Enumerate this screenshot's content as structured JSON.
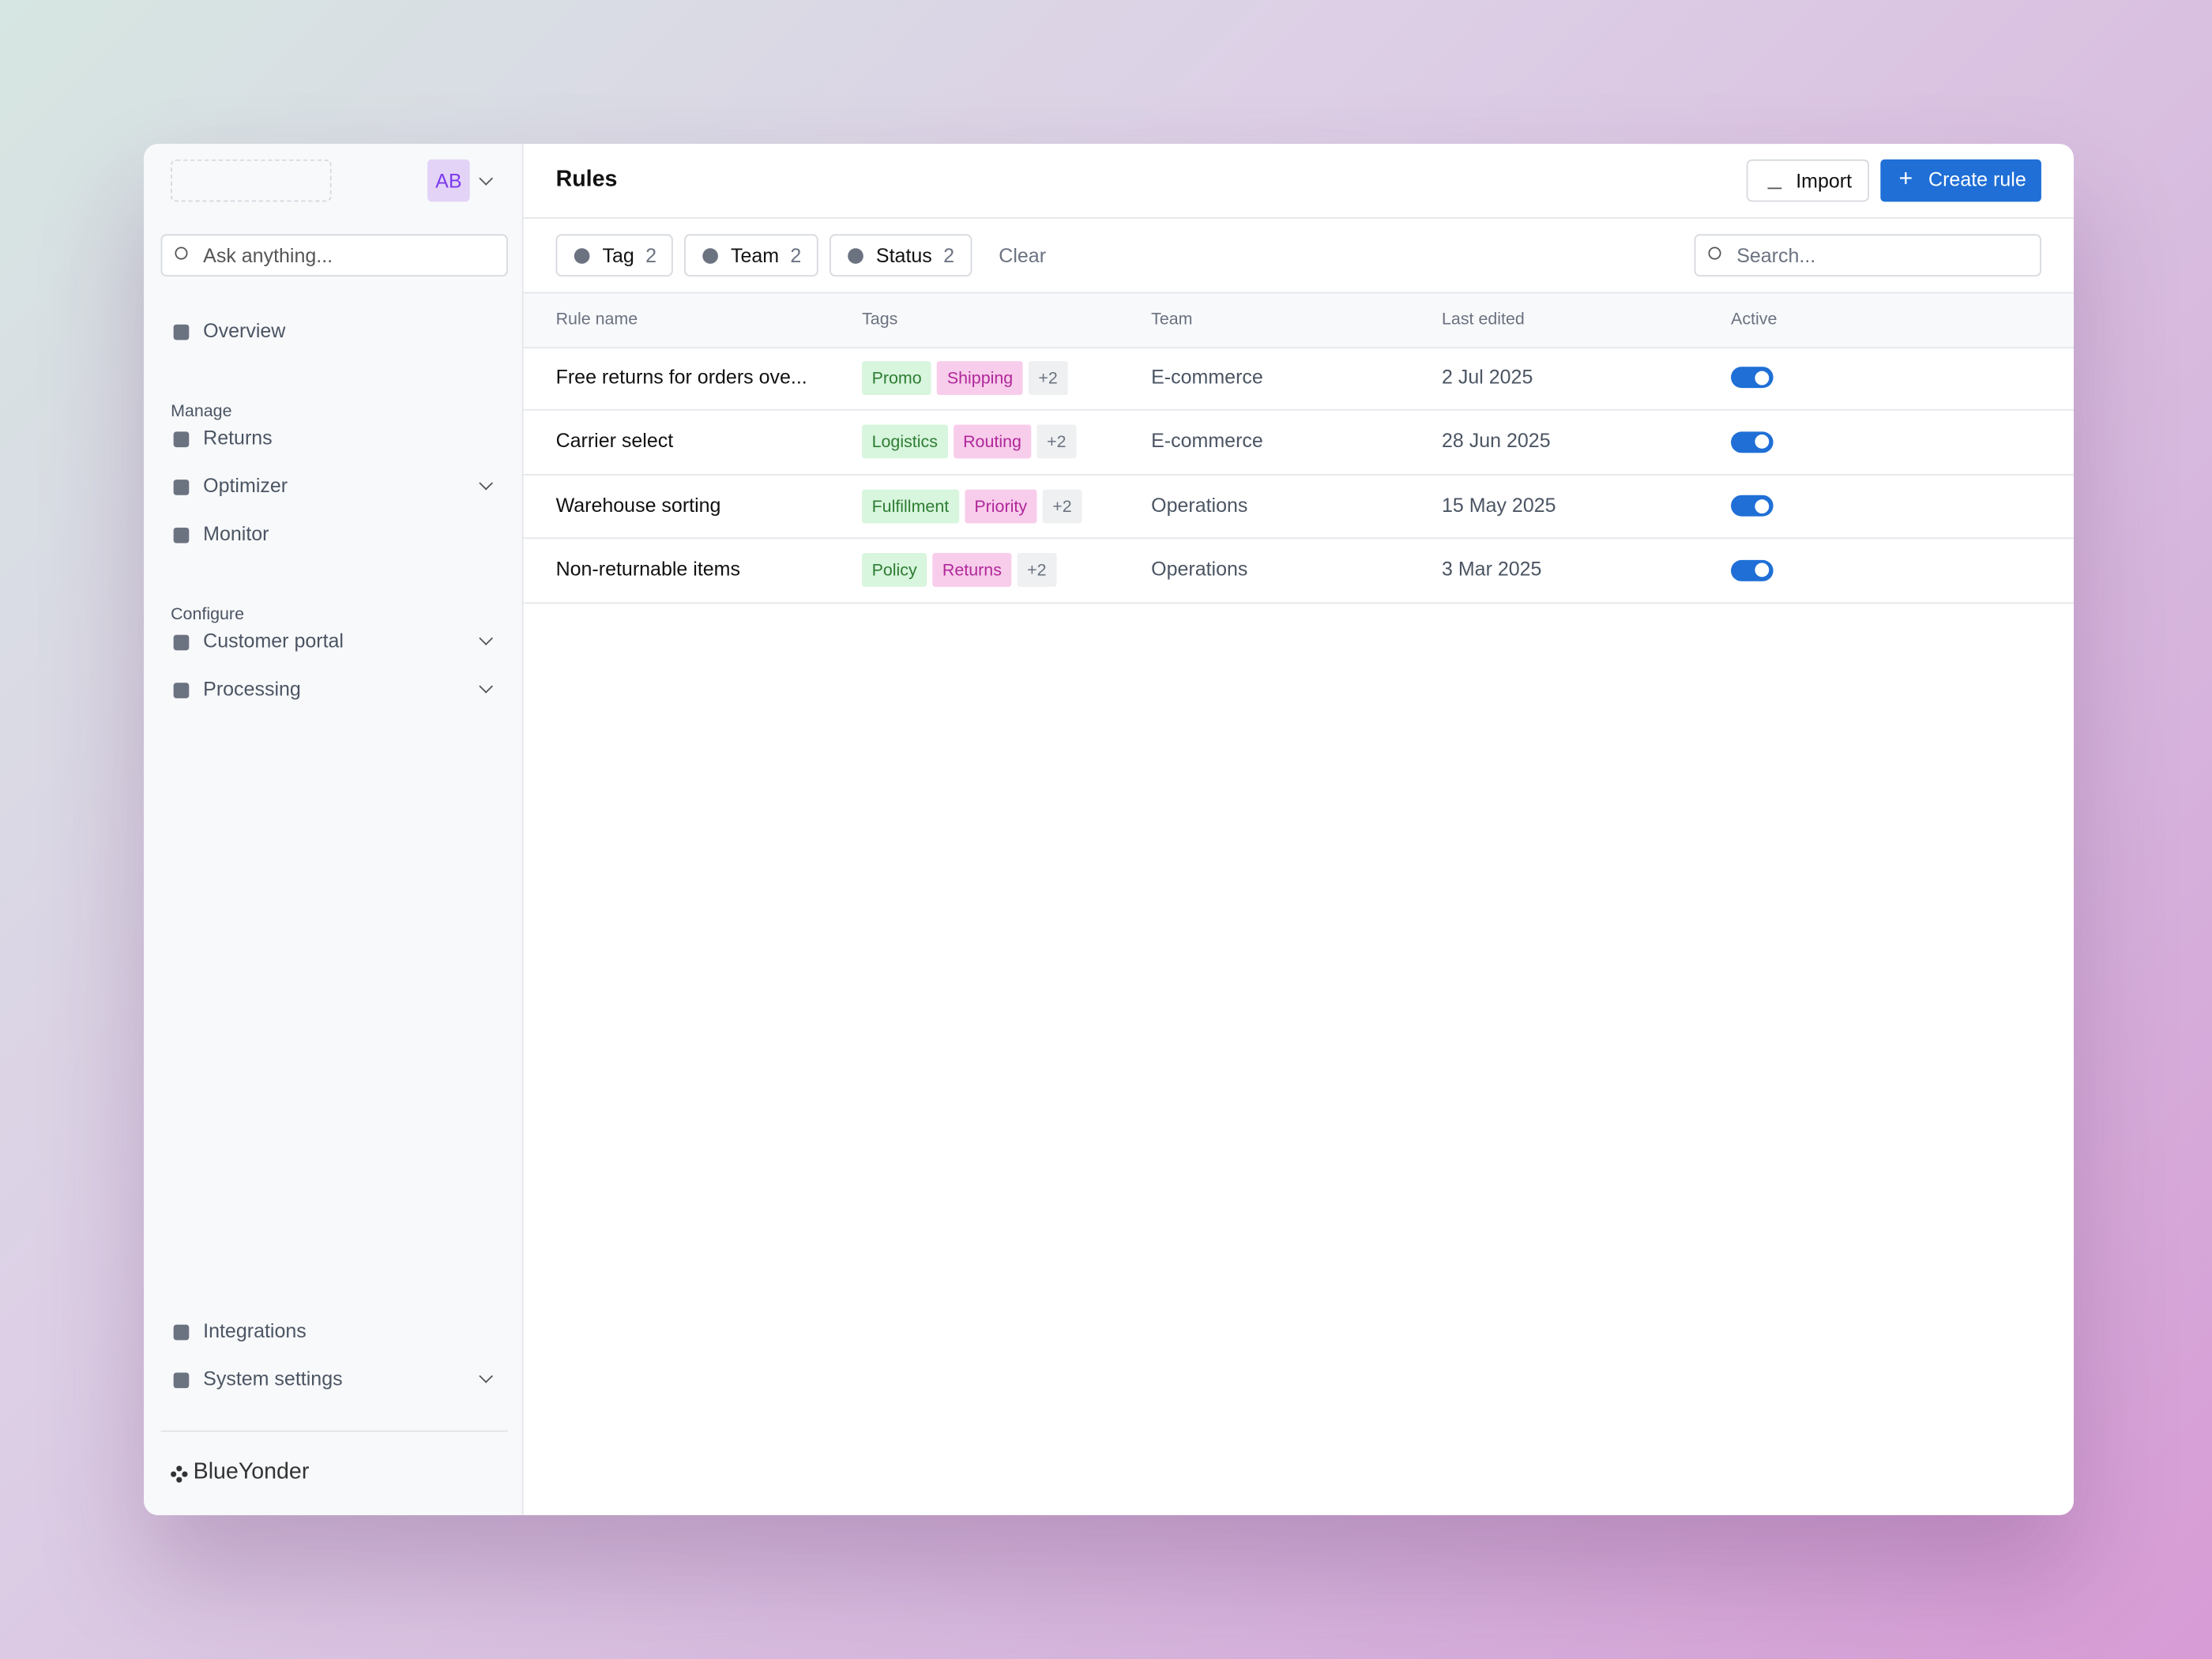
{
  "sidebar": {
    "avatar": "AB",
    "search_placeholder": "Ask anything...",
    "groups": [
      {
        "items": [
          {
            "label": "Overview"
          }
        ]
      },
      {
        "heading": "Manage",
        "items": [
          {
            "label": "Returns"
          },
          {
            "label": "Optimizer",
            "expandable": true
          },
          {
            "label": "Monitor"
          }
        ]
      },
      {
        "heading": "Configure",
        "items": [
          {
            "label": "Customer portal",
            "expandable": true
          },
          {
            "label": "Processing",
            "expandable": true
          }
        ]
      }
    ],
    "bottom": [
      {
        "label": "Integrations"
      },
      {
        "label": "System settings",
        "expandable": true
      }
    ],
    "brand": "BlueYonder"
  },
  "header": {
    "title": "Rules",
    "import": "Import",
    "create": "Create rule"
  },
  "filters": [
    {
      "label": "Tag",
      "count": 2
    },
    {
      "label": "Team",
      "count": 2
    },
    {
      "label": "Status",
      "count": 2
    }
  ],
  "clear": "Clear",
  "search_placeholder": "Search...",
  "table": {
    "columns": [
      "Rule name",
      "Tags",
      "Team",
      "Last edited",
      "Active"
    ],
    "rows": [
      {
        "name": "Free returns for orders ove...",
        "tags": [
          "Promo",
          "Shipping"
        ],
        "more": "+2",
        "team": "E-commerce",
        "edited": "2 Jul 2025",
        "active": true
      },
      {
        "name": "Carrier select",
        "tags": [
          "Logistics",
          "Routing"
        ],
        "more": "+2",
        "team": "E-commerce",
        "edited": "28 Jun 2025",
        "active": true
      },
      {
        "name": "Warehouse sorting",
        "tags": [
          "Fulfillment",
          "Priority"
        ],
        "more": "+2",
        "team": "Operations",
        "edited": "15 May 2025",
        "active": true
      },
      {
        "name": "Non-returnable items",
        "tags": [
          "Policy",
          "Returns"
        ],
        "more": "+2",
        "team": "Operations",
        "edited": "3 Mar 2025",
        "active": true
      }
    ]
  }
}
